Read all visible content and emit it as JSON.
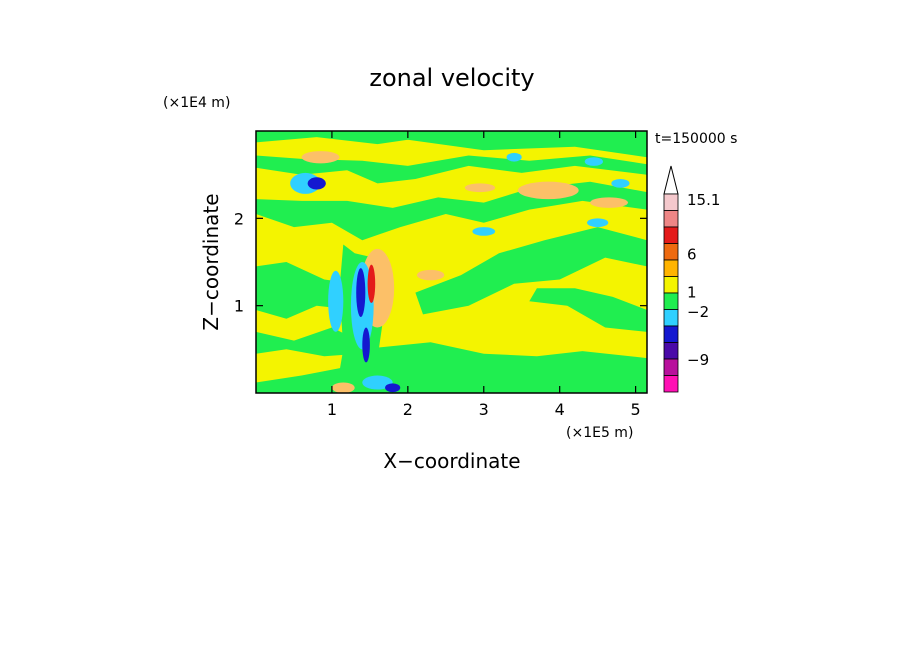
{
  "chart_data": {
    "type": "heatmap",
    "title": "zonal velocity",
    "xlabel": "X−coordinate",
    "ylabel": "Z−coordinate",
    "x_scale_label": "(×1E5 m)",
    "y_scale_label": "(×1E4 m)",
    "time_label": "t=150000 s",
    "xlim": [
      0,
      5.15
    ],
    "ylim": [
      0,
      3.0
    ],
    "x_ticks": [
      1,
      2,
      3,
      4,
      5
    ],
    "x_tick_labels": [
      "1",
      "2",
      "3",
      "4",
      "5"
    ],
    "y_ticks": [
      1,
      2
    ],
    "y_tick_labels": [
      "1",
      "2"
    ],
    "colorbar": {
      "labeled_levels": [
        {
          "value": 15.1,
          "label": "15.1"
        },
        {
          "value": 6,
          "label": "6"
        },
        {
          "value": 1,
          "label": "1"
        },
        {
          "value": -2,
          "label": "−2"
        },
        {
          "value": -9,
          "label": "−9"
        }
      ],
      "bands_top_to_bottom": [
        "#f4c8cc",
        "#ee8686",
        "#e41a1a",
        "#ee6a10",
        "#ffb400",
        "#f4f400",
        "#20ee50",
        "#30d0ff",
        "#1418d0",
        "#4a0aa8",
        "#b8109c",
        "#ff10b4"
      ],
      "extend_max_arrow": true
    },
    "colors": {
      "yellow": "#f4f400",
      "green": "#20ee50",
      "orange": "#fcc068",
      "cyan": "#30d0ff",
      "blue": "#1418d0",
      "red": "#e41a1a"
    },
    "regions": {
      "background": "yellow",
      "green_bands": [
        {
          "points": [
            [
              0,
              2.87
            ],
            [
              0.8,
              2.93
            ],
            [
              1.6,
              2.85
            ],
            [
              2.0,
              2.9
            ],
            [
              3.0,
              2.78
            ],
            [
              4.2,
              2.82
            ],
            [
              5.15,
              2.7
            ],
            [
              5.15,
              3.0
            ],
            [
              0,
              3.0
            ]
          ]
        },
        {
          "points": [
            [
              0,
              2.58
            ],
            [
              0.6,
              2.5
            ],
            [
              1.2,
              2.55
            ],
            [
              1.6,
              2.4
            ],
            [
              2.1,
              2.45
            ],
            [
              2.8,
              2.6
            ],
            [
              3.5,
              2.52
            ],
            [
              4.2,
              2.6
            ],
            [
              5.15,
              2.5
            ],
            [
              5.15,
              2.62
            ],
            [
              4.4,
              2.72
            ],
            [
              3.6,
              2.66
            ],
            [
              2.8,
              2.72
            ],
            [
              2.0,
              2.6
            ],
            [
              1.4,
              2.66
            ],
            [
              0.6,
              2.68
            ],
            [
              0,
              2.72
            ]
          ]
        },
        {
          "points": [
            [
              0,
              2.05
            ],
            [
              0.5,
              1.9
            ],
            [
              1.0,
              1.95
            ],
            [
              1.4,
              1.75
            ],
            [
              1.9,
              1.9
            ],
            [
              2.5,
              2.05
            ],
            [
              3.0,
              1.95
            ],
            [
              3.6,
              2.1
            ],
            [
              4.3,
              2.2
            ],
            [
              5.15,
              2.1
            ],
            [
              5.15,
              2.3
            ],
            [
              4.4,
              2.42
            ],
            [
              3.6,
              2.34
            ],
            [
              3.0,
              2.18
            ],
            [
              2.4,
              2.24
            ],
            [
              1.8,
              2.12
            ],
            [
              1.2,
              2.2
            ],
            [
              0.6,
              2.2
            ],
            [
              0,
              2.22
            ]
          ]
        },
        {
          "points": [
            [
              2.1,
              1.15
            ],
            [
              2.7,
              1.35
            ],
            [
              3.2,
              1.6
            ],
            [
              3.8,
              1.75
            ],
            [
              4.5,
              1.9
            ],
            [
              5.15,
              1.75
            ],
            [
              5.15,
              1.45
            ],
            [
              4.6,
              1.55
            ],
            [
              4.0,
              1.3
            ],
            [
              3.4,
              1.25
            ],
            [
              2.8,
              1.0
            ],
            [
              2.2,
              0.9
            ]
          ]
        },
        {
          "points": [
            [
              0,
              1.45
            ],
            [
              0.4,
              1.5
            ],
            [
              0.9,
              1.3
            ],
            [
              1.3,
              1.25
            ],
            [
              1.3,
              0.95
            ],
            [
              0.8,
              1.0
            ],
            [
              0.4,
              0.85
            ],
            [
              0,
              0.95
            ]
          ]
        },
        {
          "points": [
            [
              0,
              0.7
            ],
            [
              0.5,
              0.6
            ],
            [
              1.0,
              0.75
            ],
            [
              1.35,
              0.6
            ],
            [
              1.35,
              0.45
            ],
            [
              0.9,
              0.42
            ],
            [
              0.4,
              0.5
            ],
            [
              0,
              0.45
            ]
          ]
        },
        {
          "points": [
            [
              3.6,
              1.05
            ],
            [
              4.1,
              1.0
            ],
            [
              4.6,
              0.75
            ],
            [
              5.15,
              0.7
            ],
            [
              5.15,
              0.95
            ],
            [
              4.7,
              1.1
            ],
            [
              4.2,
              1.2
            ],
            [
              3.7,
              1.2
            ]
          ]
        },
        {
          "points": [
            [
              1.6,
              0.52
            ],
            [
              2.3,
              0.58
            ],
            [
              3.0,
              0.45
            ],
            [
              3.7,
              0.42
            ],
            [
              4.3,
              0.48
            ],
            [
              5.15,
              0.4
            ],
            [
              5.15,
              0.0
            ],
            [
              0,
              0.0
            ],
            [
              0,
              0.12
            ],
            [
              0.6,
              0.2
            ],
            [
              1.2,
              0.3
            ]
          ]
        },
        {
          "points": [
            [
              1.15,
              1.7
            ],
            [
              1.3,
              1.6
            ],
            [
              1.55,
              1.55
            ],
            [
              1.7,
              1.0
            ],
            [
              1.6,
              0.4
            ],
            [
              1.45,
              0.0
            ],
            [
              1.05,
              0.0
            ],
            [
              1.15,
              0.5
            ],
            [
              1.1,
              1.2
            ]
          ]
        }
      ],
      "orange_patches": [
        {
          "cx": 0.85,
          "cy": 2.7,
          "rx": 0.25,
          "ry": 0.07
        },
        {
          "cx": 3.85,
          "cy": 2.32,
          "rx": 0.4,
          "ry": 0.1
        },
        {
          "cx": 4.65,
          "cy": 2.18,
          "rx": 0.25,
          "ry": 0.06
        },
        {
          "cx": 2.95,
          "cy": 2.35,
          "rx": 0.2,
          "ry": 0.05
        },
        {
          "cx": 1.6,
          "cy": 1.2,
          "rx": 0.22,
          "ry": 0.45
        },
        {
          "cx": 2.3,
          "cy": 1.35,
          "rx": 0.18,
          "ry": 0.06
        },
        {
          "cx": 1.15,
          "cy": 0.06,
          "rx": 0.15,
          "ry": 0.06
        }
      ],
      "cyan_patches": [
        {
          "cx": 0.65,
          "cy": 2.4,
          "rx": 0.2,
          "ry": 0.12
        },
        {
          "cx": 1.4,
          "cy": 1.0,
          "rx": 0.15,
          "ry": 0.5
        },
        {
          "cx": 1.05,
          "cy": 1.05,
          "rx": 0.1,
          "ry": 0.35
        },
        {
          "cx": 3.4,
          "cy": 2.7,
          "rx": 0.1,
          "ry": 0.05
        },
        {
          "cx": 4.45,
          "cy": 2.65,
          "rx": 0.12,
          "ry": 0.05
        },
        {
          "cx": 4.8,
          "cy": 2.4,
          "rx": 0.12,
          "ry": 0.05
        },
        {
          "cx": 3.0,
          "cy": 1.85,
          "rx": 0.15,
          "ry": 0.05
        },
        {
          "cx": 4.5,
          "cy": 1.95,
          "rx": 0.14,
          "ry": 0.05
        },
        {
          "cx": 1.6,
          "cy": 0.12,
          "rx": 0.2,
          "ry": 0.08
        }
      ],
      "blue_patches": [
        {
          "cx": 0.8,
          "cy": 2.4,
          "rx": 0.12,
          "ry": 0.07
        },
        {
          "cx": 1.38,
          "cy": 1.15,
          "rx": 0.06,
          "ry": 0.28
        },
        {
          "cx": 1.45,
          "cy": 0.55,
          "rx": 0.05,
          "ry": 0.2
        },
        {
          "cx": 1.8,
          "cy": 0.06,
          "rx": 0.1,
          "ry": 0.05
        }
      ],
      "red_patches": [
        {
          "cx": 1.52,
          "cy": 1.25,
          "rx": 0.05,
          "ry": 0.22
        }
      ]
    }
  }
}
